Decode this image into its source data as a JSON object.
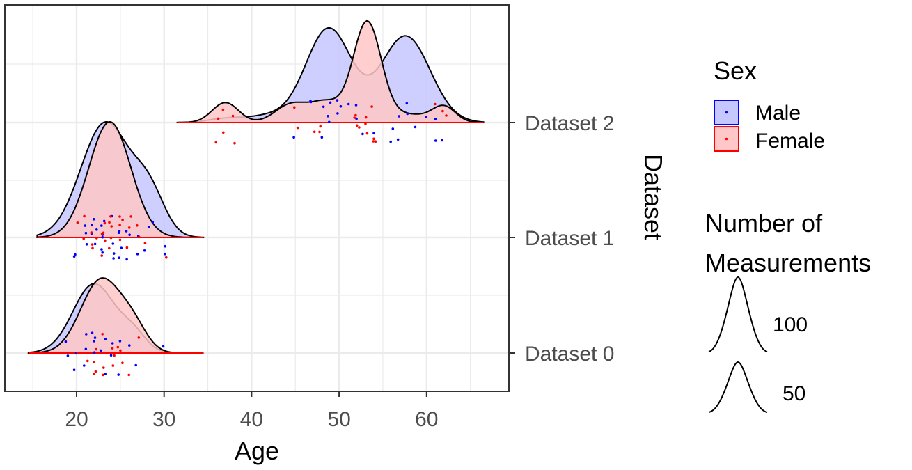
{
  "chart_data": {
    "type": "ridgeline",
    "xlabel": "Age",
    "ylabel": "Dataset",
    "xlim": [
      12.5,
      70
    ],
    "x_ticks": [
      20,
      30,
      40,
      50,
      60
    ],
    "x_tick_labels": [
      "20",
      "30",
      "40",
      "50",
      "60"
    ],
    "grid": true,
    "datasets": [
      "Dataset 0",
      "Dataset 1",
      "Dataset 2"
    ],
    "series": [
      {
        "name": "Male",
        "fill": "#c7c7ff",
        "edge": "#0000ff",
        "point": "#0000ff",
        "densities": [
          {
            "dataset": "Dataset 0",
            "height": 0.6,
            "range": [
              14.5,
              34.5
            ],
            "components": [
              [
                22,
                2.4,
                1.0
              ],
              [
                26.5,
                1.5,
                0.25
              ]
            ]
          },
          {
            "dataset": "Dataset 1",
            "height": 1.0,
            "range": [
              15.5,
              34.5
            ],
            "components": [
              [
                23.3,
                2.8,
                1.0
              ],
              [
                28.3,
                1.8,
                0.35
              ]
            ]
          },
          {
            "dataset": "Dataset 2",
            "height": 0.82,
            "range": [
              31.5,
              66.5
            ],
            "components": [
              [
                48.8,
                2.6,
                1.0
              ],
              [
                57.6,
                2.8,
                0.92
              ],
              [
                37,
                2,
                0.04
              ],
              [
                42,
                2.5,
                0.07
              ]
            ]
          }
        ],
        "points": [
          {
            "dataset": "Dataset 0",
            "ages": [
              19,
              19,
              20,
              20,
              21,
              21,
              21,
              22,
              22,
              22,
              22,
              23,
              23,
              23,
              24,
              24,
              25,
              25,
              26,
              27,
              30
            ]
          },
          {
            "dataset": "Dataset 1",
            "ages": [
              20,
              20,
              21,
              21,
              21,
              22,
              22,
              22,
              22,
              22,
              23,
              23,
              23,
              23,
              23,
              23,
              24,
              24,
              24,
              24,
              25,
              25,
              25,
              25,
              26,
              26,
              26,
              27,
              27,
              28,
              28,
              29,
              30,
              30
            ]
          },
          {
            "dataset": "Dataset 2",
            "ages": [
              45,
              47,
              47,
              48,
              48,
              49,
              49,
              49,
              50,
              50,
              50,
              51,
              52,
              52,
              53,
              54,
              56,
              56,
              57,
              57,
              58,
              58,
              59,
              60,
              61,
              61,
              62
            ]
          }
        ]
      },
      {
        "name": "Female",
        "fill": "#ffc7c7",
        "edge": "#ff0000",
        "point": "#ff0000",
        "densities": [
          {
            "dataset": "Dataset 0",
            "height": 0.65,
            "range": [
              14.5,
              34.5
            ],
            "components": [
              [
                22.8,
                2.3,
                1.0
              ],
              [
                26.5,
                1.6,
                0.3
              ]
            ]
          },
          {
            "dataset": "Dataset 1",
            "height": 1.0,
            "range": [
              15.5,
              34.5
            ],
            "components": [
              [
                23.8,
                2.4,
                1.0
              ]
            ]
          },
          {
            "dataset": "Dataset 2",
            "height": 0.88,
            "range": [
              31.5,
              66.5
            ],
            "components": [
              [
                53.2,
                1.6,
                1.0
              ],
              [
                37,
                1.5,
                0.2
              ],
              [
                44.5,
                1.8,
                0.18
              ],
              [
                48.5,
                1.8,
                0.2
              ],
              [
                58,
                2.5,
                0.08
              ],
              [
                62,
                1.3,
                0.15
              ]
            ]
          }
        ],
        "points": [
          {
            "dataset": "Dataset 0",
            "ages": [
              20,
              21,
              22,
              22,
              22,
              22,
              23,
              23,
              23,
              24,
              24,
              24,
              25,
              25,
              25,
              26,
              27
            ]
          },
          {
            "dataset": "Dataset 1",
            "ages": [
              20,
              21,
              21,
              22,
              22,
              22,
              22,
              23,
              23,
              23,
              23,
              23,
              24,
              24,
              24,
              24,
              24,
              25,
              25,
              25,
              25,
              26,
              26,
              26,
              27,
              27,
              28,
              30
            ]
          },
          {
            "dataset": "Dataset 2",
            "ages": [
              36,
              36,
              37,
              37,
              38,
              38,
              45,
              45,
              47,
              48,
              48,
              52,
              52,
              52,
              52,
              53,
              53,
              53,
              54,
              54,
              54,
              54,
              61,
              62,
              62
            ]
          }
        ]
      }
    ],
    "legends": [
      {
        "title": "Sex",
        "entries": [
          "Male",
          "Female"
        ]
      },
      {
        "title_lines": [
          "Number of",
          "Measurements"
        ],
        "entries": [
          "100",
          "50"
        ]
      }
    ]
  }
}
